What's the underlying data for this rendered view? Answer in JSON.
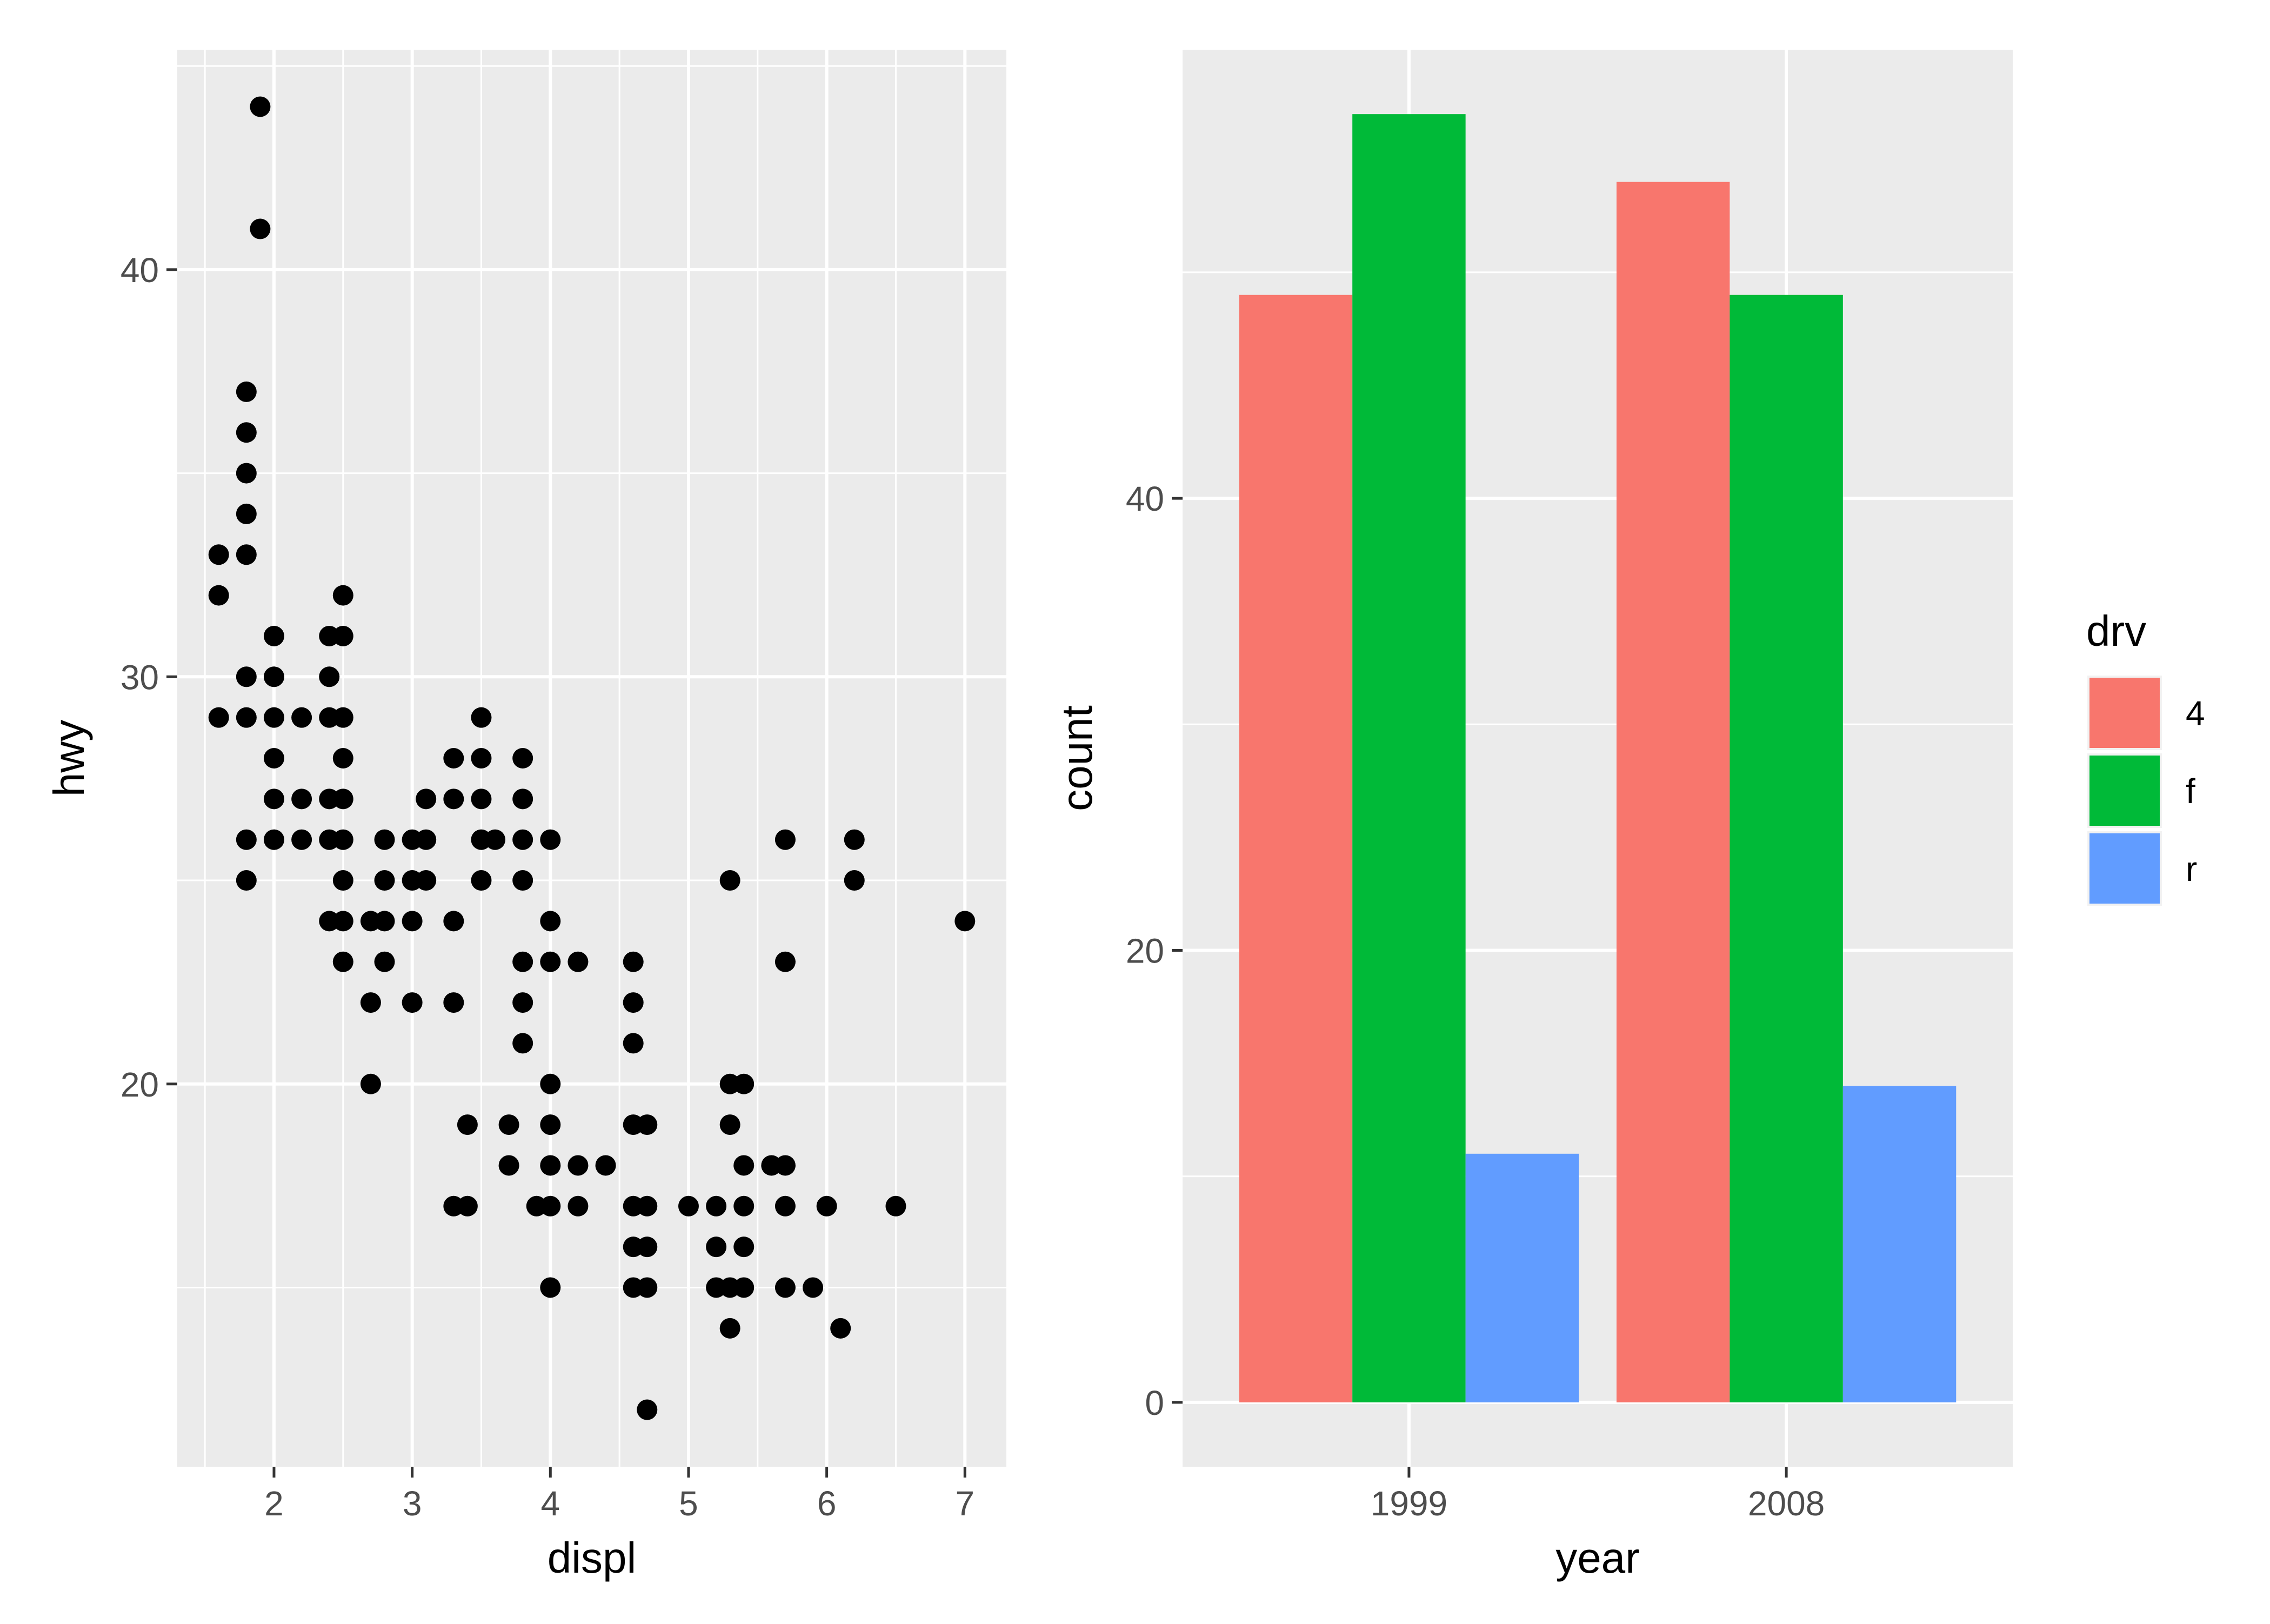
{
  "chart_data": [
    {
      "type": "scatter",
      "xlabel": "displ",
      "ylabel": "hwy",
      "xlim": [
        1.3,
        7.3
      ],
      "ylim": [
        10.6,
        45.4
      ],
      "xticks": [
        2,
        3,
        4,
        5,
        6,
        7
      ],
      "yticks": [
        20,
        30,
        40
      ],
      "xticks_minor": [
        1.5,
        2.5,
        3.5,
        4.5,
        5.5,
        6.5
      ],
      "yticks_minor": [
        15,
        25,
        35,
        45
      ],
      "grid": true,
      "point_color": "#000000",
      "points": [
        [
          1.6,
          33
        ],
        [
          1.6,
          32
        ],
        [
          1.6,
          29
        ],
        [
          1.8,
          37
        ],
        [
          1.8,
          36
        ],
        [
          1.8,
          35
        ],
        [
          1.8,
          34
        ],
        [
          1.8,
          33
        ],
        [
          1.8,
          30
        ],
        [
          1.8,
          29
        ],
        [
          1.8,
          26
        ],
        [
          1.8,
          25
        ],
        [
          1.9,
          44
        ],
        [
          1.9,
          41
        ],
        [
          2.0,
          31
        ],
        [
          2.0,
          30
        ],
        [
          2.0,
          29
        ],
        [
          2.0,
          28
        ],
        [
          2.0,
          27
        ],
        [
          2.0,
          26
        ],
        [
          2.2,
          29
        ],
        [
          2.2,
          27
        ],
        [
          2.2,
          26
        ],
        [
          2.4,
          31
        ],
        [
          2.4,
          30
        ],
        [
          2.4,
          29
        ],
        [
          2.4,
          27
        ],
        [
          2.4,
          26
        ],
        [
          2.4,
          24
        ],
        [
          2.5,
          32
        ],
        [
          2.5,
          31
        ],
        [
          2.5,
          29
        ],
        [
          2.5,
          28
        ],
        [
          2.5,
          27
        ],
        [
          2.5,
          26
        ],
        [
          2.5,
          25
        ],
        [
          2.5,
          24
        ],
        [
          2.5,
          23
        ],
        [
          2.7,
          24
        ],
        [
          2.7,
          22
        ],
        [
          2.7,
          20
        ],
        [
          2.8,
          26
        ],
        [
          2.8,
          25
        ],
        [
          2.8,
          24
        ],
        [
          2.8,
          23
        ],
        [
          3.0,
          26
        ],
        [
          3.0,
          25
        ],
        [
          3.0,
          24
        ],
        [
          3.0,
          22
        ],
        [
          3.1,
          27
        ],
        [
          3.1,
          26
        ],
        [
          3.1,
          25
        ],
        [
          3.3,
          28
        ],
        [
          3.3,
          27
        ],
        [
          3.3,
          24
        ],
        [
          3.3,
          22
        ],
        [
          3.3,
          17
        ],
        [
          3.4,
          19
        ],
        [
          3.4,
          17
        ],
        [
          3.5,
          29
        ],
        [
          3.5,
          28
        ],
        [
          3.5,
          27
        ],
        [
          3.5,
          26
        ],
        [
          3.5,
          25
        ],
        [
          3.6,
          26
        ],
        [
          3.7,
          19
        ],
        [
          3.7,
          18
        ],
        [
          3.8,
          28
        ],
        [
          3.8,
          27
        ],
        [
          3.8,
          26
        ],
        [
          3.8,
          25
        ],
        [
          3.8,
          23
        ],
        [
          3.8,
          22
        ],
        [
          3.8,
          21
        ],
        [
          3.9,
          17
        ],
        [
          4.0,
          26
        ],
        [
          4.0,
          24
        ],
        [
          4.0,
          23
        ],
        [
          4.0,
          20
        ],
        [
          4.0,
          19
        ],
        [
          4.0,
          18
        ],
        [
          4.0,
          17
        ],
        [
          4.0,
          15
        ],
        [
          4.2,
          23
        ],
        [
          4.2,
          18
        ],
        [
          4.2,
          17
        ],
        [
          4.4,
          18
        ],
        [
          4.6,
          23
        ],
        [
          4.6,
          22
        ],
        [
          4.6,
          21
        ],
        [
          4.6,
          19
        ],
        [
          4.6,
          17
        ],
        [
          4.6,
          16
        ],
        [
          4.6,
          15
        ],
        [
          4.7,
          19
        ],
        [
          4.7,
          17
        ],
        [
          4.7,
          16
        ],
        [
          4.7,
          15
        ],
        [
          4.7,
          12
        ],
        [
          5.0,
          17
        ],
        [
          5.2,
          17
        ],
        [
          5.2,
          16
        ],
        [
          5.2,
          15
        ],
        [
          5.3,
          25
        ],
        [
          5.3,
          20
        ],
        [
          5.3,
          19
        ],
        [
          5.3,
          15
        ],
        [
          5.3,
          14
        ],
        [
          5.4,
          20
        ],
        [
          5.4,
          18
        ],
        [
          5.4,
          17
        ],
        [
          5.4,
          16
        ],
        [
          5.4,
          15
        ],
        [
          5.6,
          18
        ],
        [
          5.7,
          26
        ],
        [
          5.7,
          23
        ],
        [
          5.7,
          18
        ],
        [
          5.7,
          17
        ],
        [
          5.7,
          15
        ],
        [
          5.9,
          15
        ],
        [
          6.0,
          17
        ],
        [
          6.1,
          14
        ],
        [
          6.2,
          26
        ],
        [
          6.2,
          25
        ],
        [
          6.5,
          17
        ],
        [
          7.0,
          24
        ]
      ]
    },
    {
      "type": "bar",
      "xlabel": "year",
      "ylabel": "count",
      "categories": [
        "1999",
        "2008"
      ],
      "ylim": [
        -2.85,
        59.85
      ],
      "yticks": [
        0,
        20,
        40
      ],
      "yticks_minor": [
        10,
        30,
        50
      ],
      "grid": true,
      "series": [
        {
          "name": "4",
          "color": "#F8766D",
          "values": [
            49,
            54
          ]
        },
        {
          "name": "f",
          "color": "#00BA38",
          "values": [
            57,
            49
          ]
        },
        {
          "name": "r",
          "color": "#619CFF",
          "values": [
            11,
            14
          ]
        }
      ],
      "legend": {
        "title": "drv",
        "position": "right"
      }
    }
  ],
  "theme": {
    "panel_background": "#EBEBEB",
    "grid_color": "#FFFFFF",
    "tick_color": "#333333",
    "tick_label_color": "#4D4D4D"
  }
}
